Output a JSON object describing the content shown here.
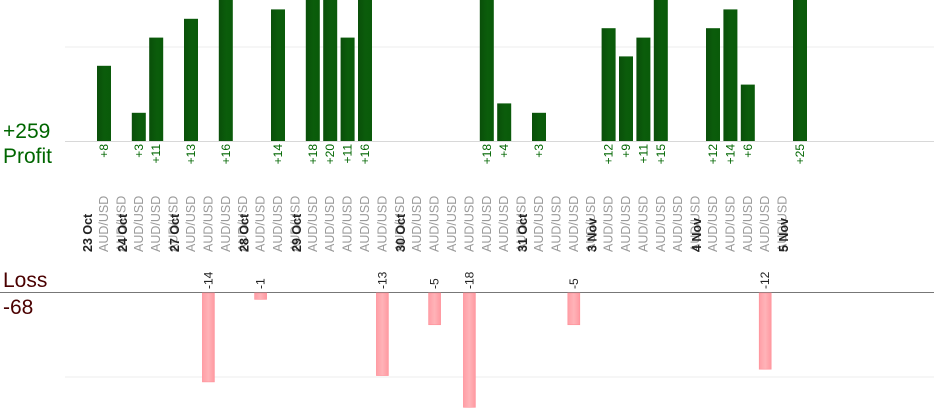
{
  "summary": {
    "total_profit": "+259",
    "profit_label": "Profit",
    "loss_label": "Loss",
    "total_loss": "-68"
  },
  "colors": {
    "profit_bar": "#0b5d0b",
    "profit_text": "#006600",
    "loss_bar": "#ffb3b8",
    "loss_text": "#4a0000",
    "symbol_text": "#999999",
    "date_text": "#222222"
  },
  "chart_data": {
    "type": "bar",
    "title": "",
    "xlabel": "",
    "ylabel": "",
    "profit_ylim": [
      0,
      25
    ],
    "loss_ylim": [
      -20,
      0
    ],
    "grid": true,
    "trades": [
      {
        "symbol": "AUD/USD",
        "date": "23 Oct",
        "profit": 8
      },
      {
        "symbol": "AUD/USD",
        "date": "",
        "profit": null
      },
      {
        "symbol": "AUD/USD",
        "date": "24 Oct",
        "profit": 3
      },
      {
        "symbol": "AUD/USD",
        "date": "",
        "profit": 11
      },
      {
        "symbol": "AUD/USD",
        "date": "",
        "profit": null
      },
      {
        "symbol": "AUD/USD",
        "date": "27 Oct",
        "profit": 13
      },
      {
        "symbol": "AUD/USD",
        "date": "",
        "profit": -14
      },
      {
        "symbol": "AUD/USD",
        "date": "",
        "profit": 16
      },
      {
        "symbol": "AUD/USD",
        "date": "",
        "profit": null
      },
      {
        "symbol": "AUD/USD",
        "date": "28 Oct",
        "profit": -1
      },
      {
        "symbol": "AUD/USD",
        "date": "",
        "profit": 14
      },
      {
        "symbol": "AUD/USD",
        "date": "",
        "profit": null
      },
      {
        "symbol": "AUD/USD",
        "date": "29 Oct",
        "profit": 18
      },
      {
        "symbol": "AUD/USD",
        "date": "",
        "profit": 20
      },
      {
        "symbol": "AUD/USD",
        "date": "",
        "profit": 11
      },
      {
        "symbol": "AUD/USD",
        "date": "",
        "profit": 16
      },
      {
        "symbol": "AUD/USD",
        "date": "",
        "profit": -13
      },
      {
        "symbol": "AUD/USD",
        "date": "",
        "profit": null
      },
      {
        "symbol": "AUD/USD",
        "date": "30 Oct",
        "profit": null
      },
      {
        "symbol": "AUD/USD",
        "date": "",
        "profit": -5
      },
      {
        "symbol": "AUD/USD",
        "date": "",
        "profit": null
      },
      {
        "symbol": "AUD/USD",
        "date": "",
        "profit": -18
      },
      {
        "symbol": "AUD/USD",
        "date": "",
        "profit": 18
      },
      {
        "symbol": "AUD/USD",
        "date": "",
        "profit": 4
      },
      {
        "symbol": "AUD/USD",
        "date": "",
        "profit": null
      },
      {
        "symbol": "AUD/USD",
        "date": "31 Oct",
        "profit": 3
      },
      {
        "symbol": "AUD/USD",
        "date": "",
        "profit": null
      },
      {
        "symbol": "AUD/USD",
        "date": "",
        "profit": -5
      },
      {
        "symbol": "AUD/USD",
        "date": "",
        "profit": null
      },
      {
        "symbol": "AUD/USD",
        "date": "3 Nov",
        "profit": 12
      },
      {
        "symbol": "AUD/USD",
        "date": "",
        "profit": 9
      },
      {
        "symbol": "AUD/USD",
        "date": "",
        "profit": 11
      },
      {
        "symbol": "AUD/USD",
        "date": "",
        "profit": 15
      },
      {
        "symbol": "AUD/USD",
        "date": "",
        "profit": null
      },
      {
        "symbol": "AUD/USD",
        "date": "",
        "profit": null
      },
      {
        "symbol": "AUD/USD",
        "date": "4 Nov",
        "profit": 12
      },
      {
        "symbol": "AUD/USD",
        "date": "",
        "profit": 14
      },
      {
        "symbol": "AUD/USD",
        "date": "",
        "profit": 6
      },
      {
        "symbol": "AUD/USD",
        "date": "",
        "profit": -12
      },
      {
        "symbol": "AUD/USD",
        "date": "",
        "profit": null
      },
      {
        "symbol": "",
        "date": "5 Nov",
        "profit": 25
      }
    ]
  }
}
